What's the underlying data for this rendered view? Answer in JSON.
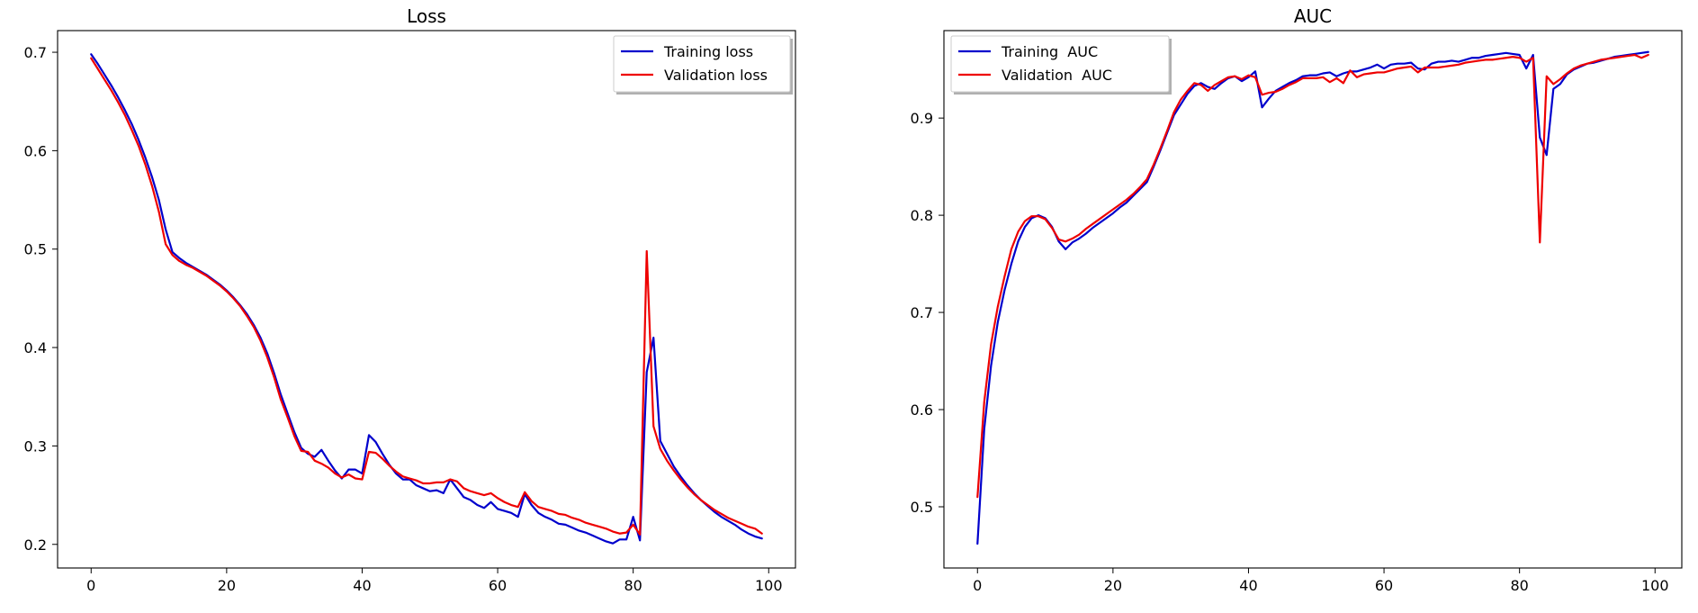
{
  "chart_data": [
    {
      "type": "line",
      "title": "Loss",
      "xlabel": "",
      "ylabel": "",
      "xlim": [
        -4.95,
        103.95
      ],
      "ylim": [
        0.176,
        0.722
      ],
      "xticks": [
        0,
        20,
        40,
        60,
        80,
        100
      ],
      "yticks": [
        0.2,
        0.3,
        0.4,
        0.5,
        0.6,
        0.7
      ],
      "grid": false,
      "legend_position": "upper right",
      "legend": [
        "Training loss",
        "Validation loss"
      ],
      "series": [
        {
          "name": "Training loss",
          "color": "#0000cc",
          "x": [
            0,
            1,
            2,
            3,
            4,
            5,
            6,
            7,
            8,
            9,
            10,
            11,
            12,
            13,
            14,
            15,
            16,
            17,
            18,
            19,
            20,
            21,
            22,
            23,
            24,
            25,
            26,
            27,
            28,
            29,
            30,
            31,
            32,
            33,
            34,
            35,
            36,
            37,
            38,
            39,
            40,
            41,
            42,
            43,
            44,
            45,
            46,
            47,
            48,
            49,
            50,
            51,
            52,
            53,
            54,
            55,
            56,
            57,
            58,
            59,
            60,
            61,
            62,
            63,
            64,
            65,
            66,
            67,
            68,
            69,
            70,
            71,
            72,
            73,
            74,
            75,
            76,
            77,
            78,
            79,
            80,
            81,
            82,
            83,
            84,
            85,
            86,
            87,
            88,
            89,
            90,
            91,
            92,
            93,
            94,
            95,
            96,
            97,
            98,
            99
          ],
          "values": [
            0.698,
            0.688,
            0.677,
            0.666,
            0.654,
            0.641,
            0.627,
            0.611,
            0.593,
            0.573,
            0.55,
            0.52,
            0.497,
            0.491,
            0.486,
            0.482,
            0.478,
            0.474,
            0.469,
            0.464,
            0.458,
            0.451,
            0.443,
            0.434,
            0.423,
            0.41,
            0.394,
            0.374,
            0.352,
            0.333,
            0.314,
            0.298,
            0.292,
            0.289,
            0.296,
            0.285,
            0.275,
            0.267,
            0.276,
            0.276,
            0.272,
            0.311,
            0.304,
            0.292,
            0.281,
            0.272,
            0.266,
            0.266,
            0.26,
            0.257,
            0.254,
            0.255,
            0.252,
            0.266,
            0.257,
            0.248,
            0.245,
            0.24,
            0.237,
            0.243,
            0.236,
            0.234,
            0.232,
            0.228,
            0.251,
            0.24,
            0.232,
            0.228,
            0.225,
            0.221,
            0.22,
            0.217,
            0.214,
            0.212,
            0.209,
            0.206,
            0.203,
            0.201,
            0.205,
            0.205,
            0.228,
            0.204,
            0.375,
            0.41,
            0.305,
            0.292,
            0.279,
            0.269,
            0.26,
            0.252,
            0.245,
            0.239,
            0.233,
            0.228,
            0.224,
            0.22,
            0.215,
            0.211,
            0.208,
            0.206
          ]
        },
        {
          "name": "Validation loss",
          "color": "#ee0000",
          "x": [
            0,
            1,
            2,
            3,
            4,
            5,
            6,
            7,
            8,
            9,
            10,
            11,
            12,
            13,
            14,
            15,
            16,
            17,
            18,
            19,
            20,
            21,
            22,
            23,
            24,
            25,
            26,
            27,
            28,
            29,
            30,
            31,
            32,
            33,
            34,
            35,
            36,
            37,
            38,
            39,
            40,
            41,
            42,
            43,
            44,
            45,
            46,
            47,
            48,
            49,
            50,
            51,
            52,
            53,
            54,
            55,
            56,
            57,
            58,
            59,
            60,
            61,
            62,
            63,
            64,
            65,
            66,
            67,
            68,
            69,
            70,
            71,
            72,
            73,
            74,
            75,
            76,
            77,
            78,
            79,
            80,
            81,
            82,
            83,
            84,
            85,
            86,
            87,
            88,
            89,
            90,
            91,
            92,
            93,
            94,
            95,
            96,
            97,
            98,
            99
          ],
          "values": [
            0.694,
            0.683,
            0.672,
            0.661,
            0.649,
            0.636,
            0.621,
            0.605,
            0.586,
            0.564,
            0.538,
            0.505,
            0.494,
            0.488,
            0.484,
            0.481,
            0.477,
            0.473,
            0.468,
            0.463,
            0.457,
            0.45,
            0.442,
            0.432,
            0.421,
            0.407,
            0.39,
            0.37,
            0.347,
            0.329,
            0.31,
            0.295,
            0.294,
            0.285,
            0.282,
            0.278,
            0.272,
            0.268,
            0.271,
            0.267,
            0.266,
            0.294,
            0.293,
            0.287,
            0.28,
            0.274,
            0.269,
            0.267,
            0.265,
            0.262,
            0.262,
            0.263,
            0.263,
            0.266,
            0.264,
            0.257,
            0.254,
            0.252,
            0.25,
            0.252,
            0.247,
            0.243,
            0.24,
            0.238,
            0.253,
            0.244,
            0.238,
            0.236,
            0.234,
            0.231,
            0.23,
            0.227,
            0.225,
            0.222,
            0.22,
            0.218,
            0.216,
            0.213,
            0.211,
            0.212,
            0.22,
            0.21,
            0.498,
            0.32,
            0.297,
            0.285,
            0.275,
            0.266,
            0.258,
            0.251,
            0.245,
            0.24,
            0.235,
            0.231,
            0.227,
            0.224,
            0.221,
            0.218,
            0.216,
            0.211
          ]
        }
      ]
    },
    {
      "type": "line",
      "title": "AUC",
      "xlabel": "",
      "ylabel": "",
      "xlim": [
        -4.95,
        103.95
      ],
      "ylim": [
        0.437,
        0.99
      ],
      "xticks": [
        0,
        20,
        40,
        60,
        80,
        100
      ],
      "yticks": [
        0.5,
        0.6,
        0.7,
        0.8,
        0.9
      ],
      "grid": false,
      "legend_position": "upper left",
      "legend": [
        "Training  AUC",
        "Validation  AUC"
      ],
      "series": [
        {
          "name": "Training  AUC",
          "color": "#0000cc",
          "x": [
            0,
            1,
            2,
            3,
            4,
            5,
            6,
            7,
            8,
            9,
            10,
            11,
            12,
            13,
            14,
            15,
            16,
            17,
            18,
            19,
            20,
            21,
            22,
            23,
            24,
            25,
            26,
            27,
            28,
            29,
            30,
            31,
            32,
            33,
            34,
            35,
            36,
            37,
            38,
            39,
            40,
            41,
            42,
            43,
            44,
            45,
            46,
            47,
            48,
            49,
            50,
            51,
            52,
            53,
            54,
            55,
            56,
            57,
            58,
            59,
            60,
            61,
            62,
            63,
            64,
            65,
            66,
            67,
            68,
            69,
            70,
            71,
            72,
            73,
            74,
            75,
            76,
            77,
            78,
            79,
            80,
            81,
            82,
            83,
            84,
            85,
            86,
            87,
            88,
            89,
            90,
            91,
            92,
            93,
            94,
            95,
            96,
            97,
            98,
            99
          ],
          "values": [
            0.462,
            0.58,
            0.645,
            0.69,
            0.723,
            0.75,
            0.773,
            0.788,
            0.797,
            0.8,
            0.797,
            0.788,
            0.773,
            0.765,
            0.772,
            0.776,
            0.781,
            0.787,
            0.792,
            0.797,
            0.802,
            0.808,
            0.813,
            0.82,
            0.827,
            0.834,
            0.85,
            0.867,
            0.885,
            0.903,
            0.914,
            0.925,
            0.933,
            0.936,
            0.932,
            0.93,
            0.936,
            0.941,
            0.943,
            0.938,
            0.942,
            0.948,
            0.911,
            0.92,
            0.928,
            0.932,
            0.936,
            0.939,
            0.943,
            0.944,
            0.944,
            0.946,
            0.947,
            0.943,
            0.946,
            0.948,
            0.948,
            0.95,
            0.952,
            0.955,
            0.951,
            0.955,
            0.956,
            0.956,
            0.957,
            0.951,
            0.95,
            0.956,
            0.958,
            0.958,
            0.959,
            0.958,
            0.96,
            0.962,
            0.962,
            0.964,
            0.965,
            0.966,
            0.967,
            0.966,
            0.965,
            0.951,
            0.965,
            0.88,
            0.862,
            0.93,
            0.935,
            0.945,
            0.95,
            0.953,
            0.956,
            0.957,
            0.959,
            0.961,
            0.963,
            0.964,
            0.965,
            0.966,
            0.967,
            0.968
          ]
        },
        {
          "name": "Validation  AUC",
          "color": "#ee0000",
          "x": [
            0,
            1,
            2,
            3,
            4,
            5,
            6,
            7,
            8,
            9,
            10,
            11,
            12,
            13,
            14,
            15,
            16,
            17,
            18,
            19,
            20,
            21,
            22,
            23,
            24,
            25,
            26,
            27,
            28,
            29,
            30,
            31,
            32,
            33,
            34,
            35,
            36,
            37,
            38,
            39,
            40,
            41,
            42,
            43,
            44,
            45,
            46,
            47,
            48,
            49,
            50,
            51,
            52,
            53,
            54,
            55,
            56,
            57,
            58,
            59,
            60,
            61,
            62,
            63,
            64,
            65,
            66,
            67,
            68,
            69,
            70,
            71,
            72,
            73,
            74,
            75,
            76,
            77,
            78,
            79,
            80,
            81,
            82,
            83,
            84,
            85,
            86,
            87,
            88,
            89,
            90,
            91,
            92,
            93,
            94,
            95,
            96,
            97,
            98,
            99
          ],
          "values": [
            0.51,
            0.608,
            0.667,
            0.706,
            0.737,
            0.765,
            0.783,
            0.794,
            0.799,
            0.799,
            0.796,
            0.787,
            0.775,
            0.773,
            0.776,
            0.78,
            0.786,
            0.791,
            0.796,
            0.801,
            0.806,
            0.811,
            0.816,
            0.822,
            0.829,
            0.837,
            0.852,
            0.869,
            0.887,
            0.906,
            0.919,
            0.928,
            0.936,
            0.934,
            0.928,
            0.934,
            0.938,
            0.942,
            0.943,
            0.94,
            0.944,
            0.942,
            0.924,
            0.926,
            0.927,
            0.93,
            0.934,
            0.937,
            0.941,
            0.941,
            0.941,
            0.942,
            0.937,
            0.941,
            0.936,
            0.949,
            0.942,
            0.945,
            0.946,
            0.947,
            0.947,
            0.949,
            0.951,
            0.952,
            0.953,
            0.947,
            0.952,
            0.952,
            0.952,
            0.953,
            0.954,
            0.955,
            0.957,
            0.958,
            0.959,
            0.96,
            0.96,
            0.961,
            0.962,
            0.963,
            0.962,
            0.958,
            0.962,
            0.772,
            0.943,
            0.935,
            0.94,
            0.946,
            0.951,
            0.954,
            0.956,
            0.958,
            0.96,
            0.961,
            0.962,
            0.963,
            0.964,
            0.965,
            0.962,
            0.965
          ]
        }
      ]
    }
  ]
}
